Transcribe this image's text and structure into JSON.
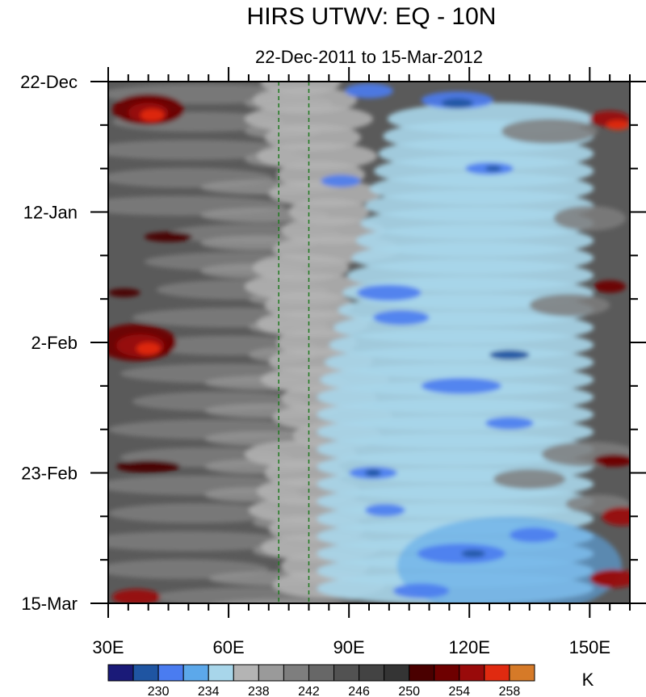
{
  "chart_data": {
    "type": "heatmap",
    "title": "HIRS UTWV: EQ - 10N",
    "subtitle": "22-Dec-2011 to 15-Mar-2012",
    "xlabel": "",
    "ylabel": "",
    "x_range": [
      30,
      160
    ],
    "x_ticks": [
      {
        "value": 30,
        "label": "30E"
      },
      {
        "value": 60,
        "label": "60E"
      },
      {
        "value": 90,
        "label": "90E"
      },
      {
        "value": 120,
        "label": "120E"
      },
      {
        "value": 150,
        "label": "150E"
      }
    ],
    "y_range_days": [
      0,
      84
    ],
    "y_ticks": [
      {
        "value": 0,
        "label": "22-Dec"
      },
      {
        "value": 21,
        "label": "12-Jan"
      },
      {
        "value": 42,
        "label": "2-Feb"
      },
      {
        "value": 63,
        "label": "23-Feb"
      },
      {
        "value": 84,
        "label": "15-Mar"
      }
    ],
    "reference_lines_lon": [
      72.5,
      80
    ],
    "colorbar": {
      "unit": "K",
      "levels": [
        228,
        230,
        232,
        234,
        236,
        238,
        240,
        242,
        244,
        246,
        248,
        250,
        252,
        254,
        256,
        258,
        260
      ],
      "labels": [
        "230",
        "234",
        "238",
        "242",
        "246",
        "250",
        "254",
        "258"
      ],
      "colors": [
        "#1a1a78",
        "#1f55a2",
        "#4a7cf0",
        "#5ca8ea",
        "#a8d6ea",
        "#b4b4b4",
        "#9a9a9a",
        "#7e7e7e",
        "#676767",
        "#525252",
        "#434343",
        "#343434",
        "#4a0000",
        "#6e0000",
        "#990a0a",
        "#e02a10",
        "#d67a28"
      ]
    }
  }
}
